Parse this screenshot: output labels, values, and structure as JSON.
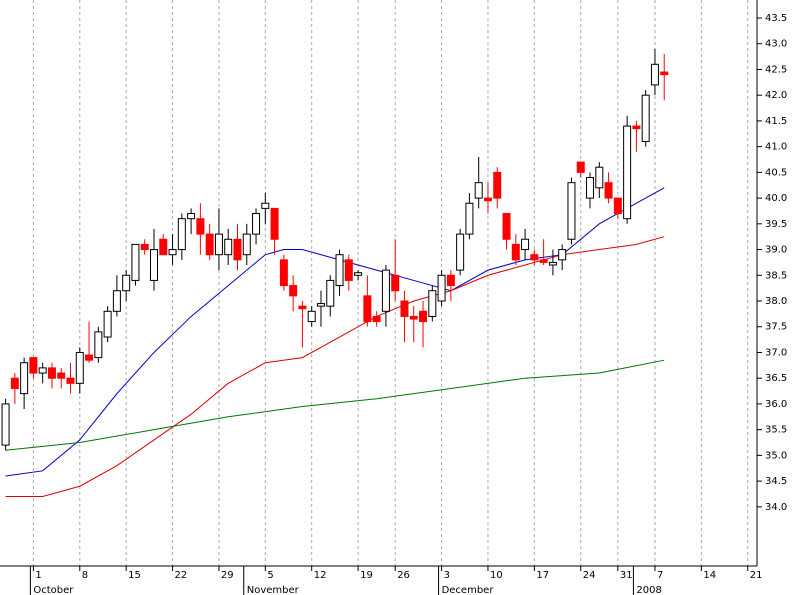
{
  "chart_data": {
    "type": "candlestick",
    "ylim": [
      32.85,
      43.85
    ],
    "yticks": [
      {
        "value": 34,
        "label": "34.0"
      },
      34.5,
      {
        "value": 35,
        "label": "35.0"
      },
      35.5,
      {
        "value": 36,
        "label": "36.0"
      },
      36.5,
      {
        "value": 37,
        "label": "37.0"
      },
      37.5,
      {
        "value": 38,
        "label": "38.0"
      },
      38.5,
      {
        "value": 39,
        "label": "39.0"
      },
      39.5,
      {
        "value": 40,
        "label": "40.0"
      },
      40.5,
      {
        "value": 41,
        "label": "41.0"
      },
      41.5,
      {
        "value": 42,
        "label": "42.0"
      },
      42.5,
      {
        "value": 43,
        "label": "43.0"
      },
      43.5
    ],
    "xlim": [
      -0.6,
      81
    ],
    "xticks": [
      {
        "value": 3,
        "label": "1"
      },
      {
        "value": 8,
        "label": "8"
      },
      {
        "value": 13,
        "label": "15"
      },
      {
        "value": 18,
        "label": "22"
      },
      {
        "value": 23,
        "label": "29"
      },
      {
        "value": 28,
        "label": "5"
      },
      {
        "value": 33,
        "label": "12"
      },
      {
        "value": 38,
        "label": "19"
      },
      {
        "value": 42,
        "label": "26"
      },
      {
        "value": 47,
        "label": "3"
      },
      {
        "value": 52,
        "label": "10"
      },
      {
        "value": 57,
        "label": "17"
      },
      {
        "value": 62,
        "label": "24"
      },
      {
        "value": 66,
        "label": "31"
      },
      {
        "value": 70,
        "label": "7"
      },
      {
        "value": 75,
        "label": "14"
      },
      {
        "value": 80,
        "label": "21"
      }
    ],
    "months": [
      {
        "value": 3,
        "label": "October"
      },
      {
        "value": 26,
        "label": "November"
      },
      {
        "value": 47,
        "label": "December"
      },
      {
        "value": 68,
        "label": "2008"
      }
    ],
    "up_color": "#ffffff",
    "down_color": "#ff0000",
    "open": [
      35.2,
      36.5,
      36.2,
      36.9,
      36.6,
      36.7,
      36.6,
      36.5,
      36.4,
      36.95,
      36.9,
      37.3,
      37.8,
      38.2,
      38.4,
      39.1,
      38.4,
      39.2,
      38.9,
      39.0,
      39.6,
      39.6,
      39.3,
      38.9,
      38.9,
      39.2,
      38.9,
      39.3,
      39.8,
      39.8,
      38.8,
      38.3,
      37.9,
      37.6,
      37.9,
      37.9,
      38.3,
      38.8,
      38.5,
      38.1,
      37.7,
      37.8,
      38.5,
      38.0,
      37.7,
      37.8,
      37.7,
      38.0,
      38.5,
      38.6,
      39.3,
      40.0,
      40.0,
      40.5,
      39.7,
      39.1,
      39.0,
      38.9,
      38.8,
      38.7,
      38.8,
      39.2,
      40.7,
      40.0,
      40.2,
      40.3,
      40.0,
      39.6,
      41.4,
      41.1,
      42.2,
      42.45
    ],
    "high": [
      36.1,
      36.6,
      36.9,
      36.9,
      36.8,
      36.8,
      36.7,
      36.8,
      37.1,
      37.6,
      37.5,
      37.9,
      38.5,
      38.6,
      39.1,
      39.2,
      39.4,
      39.3,
      39.3,
      39.7,
      39.8,
      39.9,
      39.5,
      39.8,
      39.4,
      39.5,
      39.5,
      39.8,
      40.1,
      39.8,
      38.9,
      38.5,
      38.0,
      37.9,
      38.2,
      38.5,
      39.0,
      38.9,
      38.6,
      38.5,
      37.8,
      38.7,
      39.2,
      38.2,
      37.9,
      38.0,
      38.3,
      38.6,
      38.6,
      39.4,
      40.1,
      40.8,
      40.3,
      40.6,
      39.7,
      39.3,
      39.4,
      39.0,
      39.2,
      39.0,
      39.1,
      40.4,
      40.7,
      40.5,
      40.7,
      40.5,
      40.0,
      41.6,
      41.5,
      42.1,
      42.9,
      42.8
    ],
    "low": [
      35.1,
      36.0,
      35.9,
      36.5,
      36.4,
      36.3,
      36.3,
      36.2,
      36.2,
      36.8,
      36.8,
      37.2,
      37.7,
      38.0,
      38.3,
      38.9,
      38.2,
      38.9,
      38.7,
      38.8,
      39.3,
      38.9,
      38.8,
      38.6,
      38.7,
      38.6,
      38.7,
      39.1,
      39.5,
      38.9,
      38.2,
      37.8,
      37.1,
      37.5,
      37.5,
      37.7,
      38.1,
      38.2,
      38.4,
      37.5,
      37.5,
      37.5,
      38.0,
      37.2,
      37.2,
      37.1,
      37.6,
      37.9,
      38.0,
      38.5,
      39.2,
      39.8,
      39.7,
      39.8,
      39.0,
      38.7,
      38.8,
      38.7,
      38.7,
      38.5,
      38.6,
      39.1,
      40.4,
      39.8,
      40.0,
      39.9,
      39.6,
      39.5,
      40.9,
      41.0,
      42.0,
      41.9
    ],
    "close": [
      36.0,
      36.3,
      36.8,
      36.6,
      36.7,
      36.5,
      36.5,
      36.4,
      37.0,
      36.85,
      37.4,
      37.8,
      38.2,
      38.5,
      39.1,
      39.0,
      39.0,
      38.9,
      39.0,
      39.6,
      39.7,
      39.3,
      38.9,
      39.3,
      39.2,
      38.8,
      39.3,
      39.7,
      39.9,
      39.2,
      38.3,
      38.1,
      37.85,
      37.8,
      37.95,
      38.4,
      38.9,
      38.4,
      38.55,
      37.6,
      37.6,
      38.6,
      38.2,
      37.7,
      37.65,
      37.6,
      38.2,
      38.5,
      38.3,
      39.3,
      39.9,
      40.3,
      39.95,
      40.0,
      39.2,
      38.8,
      39.2,
      38.8,
      38.75,
      38.75,
      39.0,
      40.3,
      40.5,
      40.4,
      40.6,
      40.0,
      39.7,
      41.4,
      41.35,
      42.0,
      42.6,
      42.4
    ],
    "moving_averages": [
      {
        "color": "#0000cc",
        "x": [
          0,
          4,
          8,
          12,
          16,
          20,
          24,
          28,
          30,
          32,
          36,
          40,
          44,
          48,
          52,
          56,
          60,
          64,
          68,
          71
        ],
        "values": [
          34.6,
          34.7,
          35.3,
          36.2,
          37.0,
          37.7,
          38.3,
          38.9,
          39.0,
          39.0,
          38.8,
          38.6,
          38.4,
          38.2,
          38.6,
          38.8,
          38.9,
          39.5,
          39.9,
          40.2
        ]
      },
      {
        "color": "#dd0000",
        "x": [
          0,
          4,
          8,
          12,
          16,
          20,
          24,
          28,
          32,
          36,
          40,
          44,
          48,
          52,
          56,
          60,
          64,
          68,
          71
        ],
        "values": [
          34.2,
          34.2,
          34.4,
          34.8,
          35.3,
          35.8,
          36.4,
          36.8,
          36.9,
          37.3,
          37.7,
          38.0,
          38.2,
          38.5,
          38.7,
          38.9,
          39.0,
          39.1,
          39.25
        ]
      },
      {
        "color": "#007700",
        "x": [
          0,
          8,
          16,
          24,
          32,
          40,
          48,
          56,
          64,
          71
        ],
        "values": [
          35.1,
          35.25,
          35.5,
          35.75,
          35.95,
          36.1,
          36.3,
          36.5,
          36.6,
          36.85
        ]
      }
    ]
  }
}
